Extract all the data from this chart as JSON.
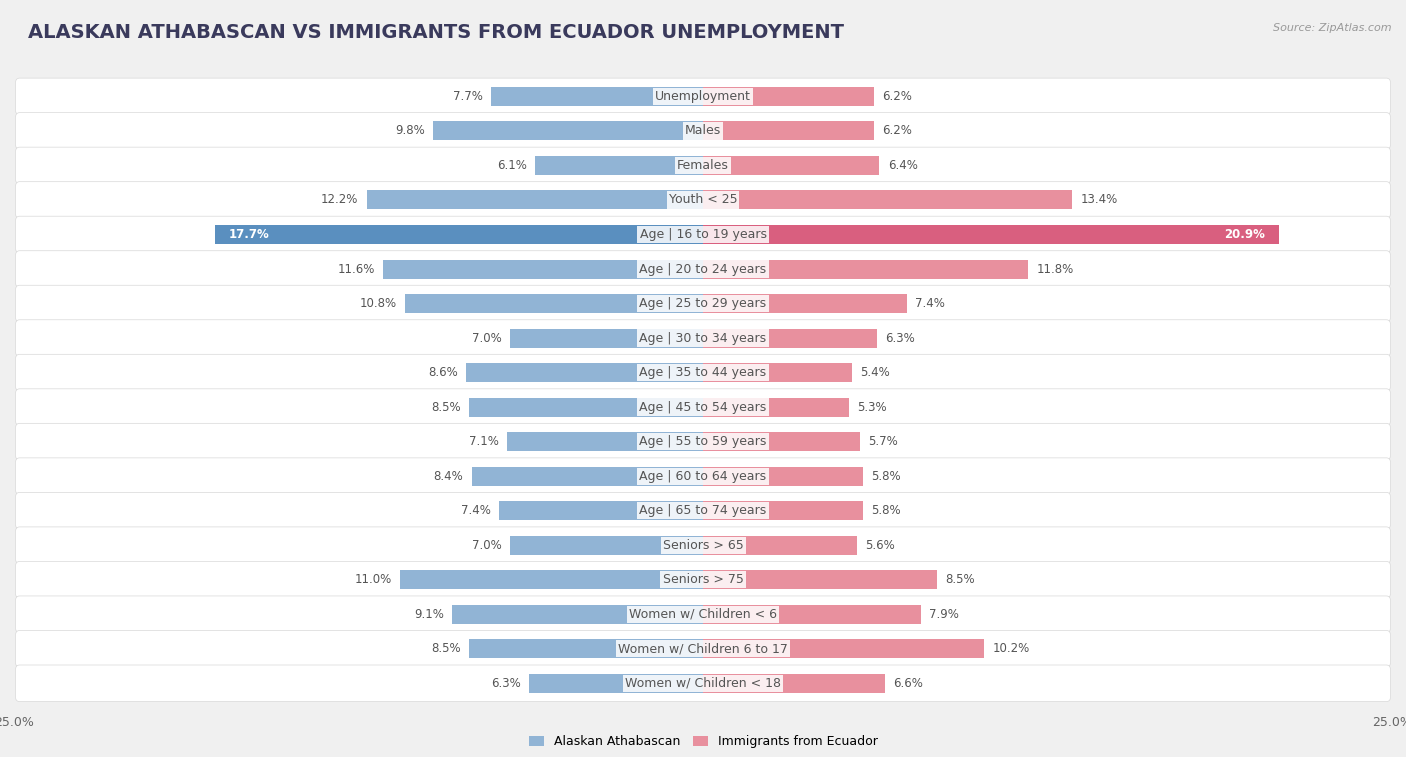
{
  "title": "ALASKAN ATHABASCAN VS IMMIGRANTS FROM ECUADOR UNEMPLOYMENT",
  "source": "Source: ZipAtlas.com",
  "categories": [
    "Unemployment",
    "Males",
    "Females",
    "Youth < 25",
    "Age | 16 to 19 years",
    "Age | 20 to 24 years",
    "Age | 25 to 29 years",
    "Age | 30 to 34 years",
    "Age | 35 to 44 years",
    "Age | 45 to 54 years",
    "Age | 55 to 59 years",
    "Age | 60 to 64 years",
    "Age | 65 to 74 years",
    "Seniors > 65",
    "Seniors > 75",
    "Women w/ Children < 6",
    "Women w/ Children 6 to 17",
    "Women w/ Children < 18"
  ],
  "left_values": [
    7.7,
    9.8,
    6.1,
    12.2,
    17.7,
    11.6,
    10.8,
    7.0,
    8.6,
    8.5,
    7.1,
    8.4,
    7.4,
    7.0,
    11.0,
    9.1,
    8.5,
    6.3
  ],
  "right_values": [
    6.2,
    6.2,
    6.4,
    13.4,
    20.9,
    11.8,
    7.4,
    6.3,
    5.4,
    5.3,
    5.7,
    5.8,
    5.8,
    5.6,
    8.5,
    7.9,
    10.2,
    6.6
  ],
  "left_color_normal": "#91b4d5",
  "right_color_normal": "#e8909e",
  "left_color_highlight": "#5a8fbf",
  "right_color_highlight": "#d95f7f",
  "highlight_row": 4,
  "xlim": 25.0,
  "legend_left": "Alaskan Athabascan",
  "legend_right": "Immigrants from Ecuador",
  "bg_color": "#f0f0f0",
  "row_bg_color": "#ffffff",
  "row_border_color": "#d8d8d8",
  "title_color": "#3a3a5c",
  "label_color": "#555555",
  "value_color": "#555555",
  "source_color": "#999999",
  "title_fontsize": 14,
  "label_fontsize": 9,
  "value_fontsize": 8.5,
  "source_fontsize": 8
}
